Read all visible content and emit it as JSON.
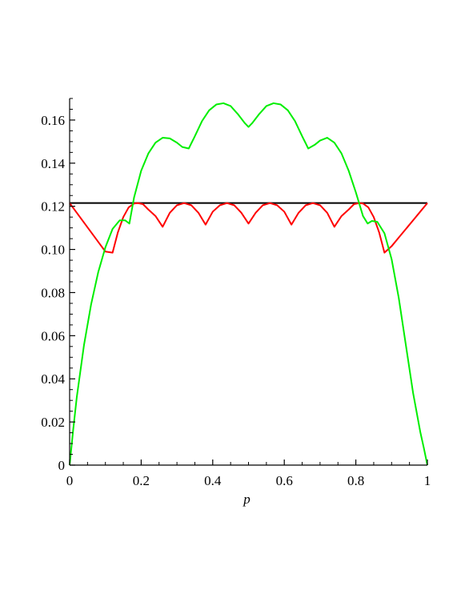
{
  "chart_data": {
    "type": "line",
    "title": "",
    "xlabel": "p",
    "ylabel": "",
    "xlim": [
      0,
      1
    ],
    "ylim": [
      0,
      0.17
    ],
    "grid": false,
    "legend": "none",
    "x_ticks": [
      0,
      0.2,
      0.4,
      0.6,
      0.8,
      1
    ],
    "x_tick_labels": [
      "0",
      "0.2",
      "0.4",
      "0.6",
      "0.8",
      "1"
    ],
    "y_ticks": [
      0,
      0.02,
      0.04,
      0.06,
      0.08,
      0.1,
      0.12,
      0.14,
      0.16
    ],
    "y_tick_labels": [
      "0",
      "0.02",
      "0.04",
      "0.06",
      "0.08",
      "0.10",
      "0.12",
      "0.14",
      "0.16"
    ],
    "series": [
      {
        "color": "#000000",
        "x": [
          0,
          1
        ],
        "y": [
          0.1215,
          0.1215
        ]
      },
      {
        "color": "#ff0000",
        "x": [
          0,
          0.02,
          0.04,
          0.06,
          0.08,
          0.1,
          0.12,
          0.135,
          0.15,
          0.165,
          0.18,
          0.19,
          0.205,
          0.22,
          0.24,
          0.26,
          0.28,
          0.3,
          0.32,
          0.34,
          0.36,
          0.38,
          0.4,
          0.42,
          0.44,
          0.46,
          0.48,
          0.5,
          0.52,
          0.54,
          0.56,
          0.58,
          0.6,
          0.62,
          0.64,
          0.66,
          0.68,
          0.7,
          0.72,
          0.74,
          0.76,
          0.78,
          0.795,
          0.81,
          0.82,
          0.835,
          0.85,
          0.865,
          0.88,
          0.9,
          0.92,
          0.94,
          0.96,
          0.98,
          1
        ],
        "y": [
          0.1215,
          0.117,
          0.1125,
          0.108,
          0.1035,
          0.099,
          0.0985,
          0.108,
          0.115,
          0.1195,
          0.1213,
          0.1215,
          0.121,
          0.1185,
          0.1155,
          0.1105,
          0.117,
          0.1205,
          0.1215,
          0.1205,
          0.117,
          0.1115,
          0.1175,
          0.1205,
          0.1215,
          0.1205,
          0.117,
          0.112,
          0.117,
          0.1205,
          0.1215,
          0.1205,
          0.1175,
          0.1115,
          0.117,
          0.1205,
          0.1215,
          0.1205,
          0.117,
          0.1105,
          0.1155,
          0.1185,
          0.121,
          0.1215,
          0.1213,
          0.1195,
          0.115,
          0.108,
          0.0985,
          0.1015,
          0.1055,
          0.1095,
          0.1135,
          0.1175,
          0.1215
        ]
      },
      {
        "color": "#00ee00",
        "x": [
          0,
          0.01,
          0.02,
          0.04,
          0.06,
          0.08,
          0.1,
          0.12,
          0.14,
          0.155,
          0.167,
          0.18,
          0.2,
          0.22,
          0.24,
          0.26,
          0.28,
          0.3,
          0.315,
          0.333,
          0.35,
          0.37,
          0.39,
          0.41,
          0.43,
          0.45,
          0.47,
          0.49,
          0.5,
          0.51,
          0.53,
          0.55,
          0.57,
          0.59,
          0.61,
          0.63,
          0.65,
          0.667,
          0.685,
          0.7,
          0.72,
          0.74,
          0.76,
          0.78,
          0.8,
          0.82,
          0.833,
          0.845,
          0.86,
          0.88,
          0.9,
          0.92,
          0.94,
          0.96,
          0.98,
          0.99,
          1
        ],
        "y": [
          0,
          0.0165,
          0.0315,
          0.0555,
          0.0745,
          0.0895,
          0.101,
          0.1095,
          0.1135,
          0.1135,
          0.112,
          0.124,
          0.1365,
          0.1445,
          0.1495,
          0.1518,
          0.1515,
          0.1495,
          0.1475,
          0.1468,
          0.1525,
          0.1595,
          0.1645,
          0.1672,
          0.1678,
          0.1665,
          0.1628,
          0.1585,
          0.1568,
          0.1585,
          0.1628,
          0.1665,
          0.1678,
          0.1672,
          0.1645,
          0.1595,
          0.1525,
          0.1468,
          0.1485,
          0.1505,
          0.1518,
          0.1495,
          0.1445,
          0.1365,
          0.1265,
          0.1155,
          0.112,
          0.1132,
          0.1128,
          0.1075,
          0.0955,
          0.0775,
          0.0555,
          0.0335,
          0.0155,
          0.008,
          0
        ]
      }
    ]
  }
}
